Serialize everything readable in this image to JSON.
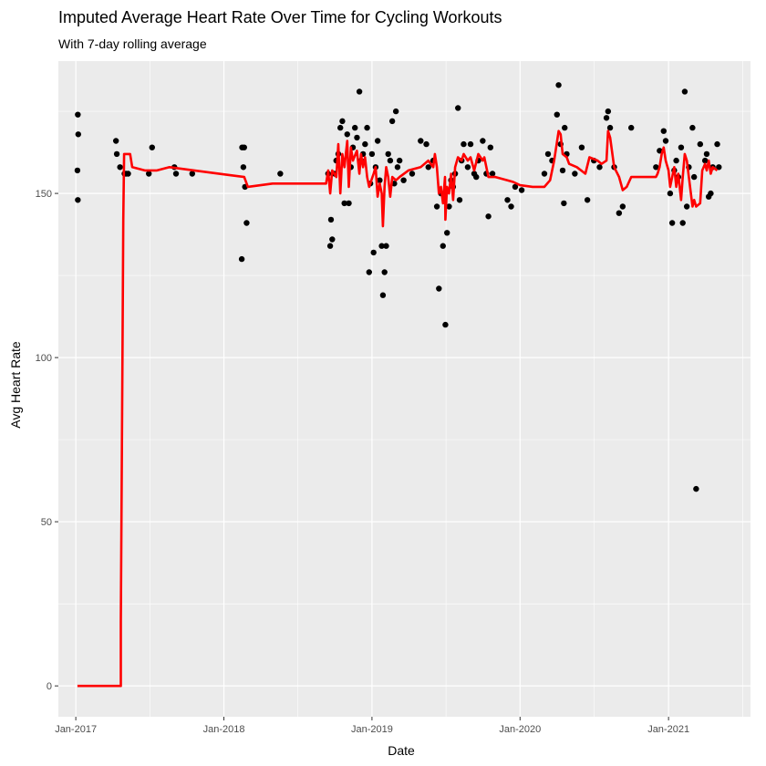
{
  "chart_data": {
    "type": "scatter",
    "title": "Imputed Average Heart Rate Over Time for Cycling Workouts",
    "subtitle": "With 7-day rolling average",
    "xlabel": "Date",
    "ylabel": "Avg Heart Rate",
    "x_ticks": [
      "2017-01-01",
      "2018-01-01",
      "2019-01-01",
      "2020-01-01",
      "2021-01-01"
    ],
    "x_tick_labels": [
      "Jan-2017",
      "Jan-2018",
      "Jan-2019",
      "Jan-2020",
      "Jan-2021"
    ],
    "y_ticks": [
      0,
      50,
      100,
      150
    ],
    "y_tick_labels": [
      "0",
      "50",
      "100",
      "150"
    ],
    "xlim": [
      "2016-11-19",
      "2021-07-22"
    ],
    "ylim": [
      -9.4,
      190.3
    ],
    "grid": true,
    "background": "#ebebeb",
    "grid_color": "#ffffff",
    "point_color": "#000000",
    "line_color": "#ff0000",
    "series": [
      {
        "type": "scatter",
        "points": [
          [
            "2017-01-06",
            174
          ],
          [
            "2017-01-07",
            168
          ],
          [
            "2017-01-05",
            157
          ],
          [
            "2017-01-06",
            148
          ],
          [
            "2017-04-10",
            166
          ],
          [
            "2017-04-12",
            162
          ],
          [
            "2017-04-20",
            158
          ],
          [
            "2017-05-01",
            156
          ],
          [
            "2017-05-05",
            156
          ],
          [
            "2017-05-10",
            156
          ],
          [
            "2017-06-30",
            156
          ],
          [
            "2017-07-08",
            164
          ],
          [
            "2017-09-01",
            158
          ],
          [
            "2017-09-05",
            156
          ],
          [
            "2017-10-15",
            156
          ],
          [
            "2018-02-15",
            164
          ],
          [
            "2018-02-20",
            164
          ],
          [
            "2018-02-18",
            158
          ],
          [
            "2018-02-22",
            152
          ],
          [
            "2018-02-26",
            141
          ],
          [
            "2018-02-14",
            130
          ],
          [
            "2018-05-20",
            156
          ],
          [
            "2018-09-20",
            134
          ],
          [
            "2018-09-25",
            136
          ],
          [
            "2018-09-22",
            142
          ],
          [
            "2018-10-01",
            156
          ],
          [
            "2018-10-05",
            160
          ],
          [
            "2018-10-10",
            162
          ],
          [
            "2018-10-15",
            170
          ],
          [
            "2018-10-20",
            172
          ],
          [
            "2018-11-01",
            168
          ],
          [
            "2018-11-05",
            147
          ],
          [
            "2018-11-10",
            158
          ],
          [
            "2018-11-15",
            164
          ],
          [
            "2018-11-25",
            167
          ],
          [
            "2018-12-01",
            181
          ],
          [
            "2018-12-05",
            160
          ],
          [
            "2018-12-10",
            162
          ],
          [
            "2018-12-15",
            165
          ],
          [
            "2018-12-20",
            170
          ],
          [
            "2018-12-25",
            126
          ],
          [
            "2019-01-05",
            132
          ],
          [
            "2019-01-10",
            158
          ],
          [
            "2019-01-15",
            166
          ],
          [
            "2019-01-20",
            154
          ],
          [
            "2019-01-25",
            134
          ],
          [
            "2019-01-28",
            119
          ],
          [
            "2019-02-01",
            126
          ],
          [
            "2019-02-05",
            134
          ],
          [
            "2019-02-10",
            162
          ],
          [
            "2019-02-15",
            160
          ],
          [
            "2019-02-20",
            172
          ],
          [
            "2019-03-01",
            175
          ],
          [
            "2019-03-10",
            160
          ],
          [
            "2019-03-20",
            154
          ],
          [
            "2019-04-10",
            156
          ],
          [
            "2019-05-01",
            166
          ],
          [
            "2019-05-15",
            165
          ],
          [
            "2019-06-01",
            160
          ],
          [
            "2019-06-10",
            146
          ],
          [
            "2019-06-15",
            121
          ],
          [
            "2019-06-25",
            134
          ],
          [
            "2019-07-01",
            110
          ],
          [
            "2019-07-05",
            138
          ],
          [
            "2019-07-10",
            146
          ],
          [
            "2019-07-20",
            152
          ],
          [
            "2019-07-25",
            156
          ],
          [
            "2019-08-01",
            176
          ],
          [
            "2019-08-05",
            148
          ],
          [
            "2019-08-15",
            165
          ],
          [
            "2019-08-25",
            158
          ],
          [
            "2019-09-01",
            165
          ],
          [
            "2019-09-10",
            156
          ],
          [
            "2019-09-20",
            160
          ],
          [
            "2019-10-01",
            166
          ],
          [
            "2019-10-10",
            156
          ],
          [
            "2019-10-15",
            143
          ],
          [
            "2019-10-20",
            164
          ],
          [
            "2019-10-25",
            156
          ],
          [
            "2019-12-01",
            148
          ],
          [
            "2019-12-10",
            146
          ],
          [
            "2019-12-20",
            152
          ],
          [
            "2020-01-05",
            151
          ],
          [
            "2020-03-01",
            156
          ],
          [
            "2020-03-10",
            162
          ],
          [
            "2020-04-01",
            174
          ],
          [
            "2020-04-05",
            183
          ],
          [
            "2020-04-10",
            165
          ],
          [
            "2020-04-15",
            157
          ],
          [
            "2020-04-18",
            147
          ],
          [
            "2020-04-25",
            162
          ],
          [
            "2020-05-15",
            156
          ],
          [
            "2020-06-01",
            164
          ],
          [
            "2020-06-15",
            148
          ],
          [
            "2020-07-01",
            160
          ],
          [
            "2020-07-15",
            158
          ],
          [
            "2020-08-01",
            173
          ],
          [
            "2020-08-05",
            175
          ],
          [
            "2020-08-10",
            170
          ],
          [
            "2020-08-20",
            158
          ],
          [
            "2020-09-01",
            144
          ],
          [
            "2020-09-10",
            146
          ],
          [
            "2020-10-01",
            170
          ],
          [
            "2020-12-01",
            158
          ],
          [
            "2020-12-10",
            163
          ],
          [
            "2020-12-20",
            169
          ],
          [
            "2020-12-25",
            166
          ],
          [
            "2021-01-05",
            150
          ],
          [
            "2021-01-10",
            141
          ],
          [
            "2021-01-15",
            157
          ],
          [
            "2021-01-20",
            160
          ],
          [
            "2021-01-25",
            155
          ],
          [
            "2021-02-01",
            164
          ],
          [
            "2021-02-05",
            141
          ],
          [
            "2021-02-10",
            181
          ],
          [
            "2021-02-15",
            146
          ],
          [
            "2021-02-20",
            158
          ],
          [
            "2021-03-01",
            170
          ],
          [
            "2021-03-10",
            60
          ],
          [
            "2021-03-20",
            165
          ],
          [
            "2021-04-01",
            160
          ],
          [
            "2021-04-10",
            149
          ],
          [
            "2021-04-15",
            150
          ],
          [
            "2021-04-20",
            158
          ],
          [
            "2021-05-01",
            165
          ],
          [
            "2021-05-05",
            158
          ],
          [
            "2018-09-15",
            156
          ],
          [
            "2018-10-25",
            147
          ],
          [
            "2018-11-20",
            170
          ],
          [
            "2019-01-01",
            162
          ],
          [
            "2019-02-25",
            153
          ],
          [
            "2019-06-20",
            150
          ],
          [
            "2019-08-10",
            160
          ],
          [
            "2019-09-15",
            155
          ],
          [
            "2020-04-20",
            170
          ],
          [
            "2021-03-05",
            155
          ],
          [
            "2021-04-05",
            162
          ],
          [
            "2019-05-20",
            158
          ],
          [
            "2018-12-28",
            153
          ],
          [
            "2019-03-05",
            158
          ],
          [
            "2019-07-15",
            154
          ],
          [
            "2020-03-20",
            160
          ]
        ]
      },
      {
        "type": "line",
        "points": [
          [
            "2017-01-05",
            0
          ],
          [
            "2017-04-22",
            0
          ],
          [
            "2017-04-22",
            20
          ],
          [
            "2017-04-24",
            60
          ],
          [
            "2017-04-26",
            100
          ],
          [
            "2017-04-28",
            142
          ],
          [
            "2017-04-30",
            162
          ],
          [
            "2017-05-15",
            162
          ],
          [
            "2017-05-20",
            158
          ],
          [
            "2017-06-20",
            157
          ],
          [
            "2017-07-20",
            157
          ],
          [
            "2017-08-20",
            158
          ],
          [
            "2017-10-20",
            157
          ],
          [
            "2018-01-20",
            155.5
          ],
          [
            "2018-02-20",
            155
          ],
          [
            "2018-03-01",
            152
          ],
          [
            "2018-05-01",
            153
          ],
          [
            "2018-09-10",
            153
          ],
          [
            "2018-09-15",
            157
          ],
          [
            "2018-09-20",
            150
          ],
          [
            "2018-09-25",
            157
          ],
          [
            "2018-10-05",
            155
          ],
          [
            "2018-10-10",
            165
          ],
          [
            "2018-10-15",
            150
          ],
          [
            "2018-10-20",
            162
          ],
          [
            "2018-10-25",
            158
          ],
          [
            "2018-11-01",
            166
          ],
          [
            "2018-11-05",
            152
          ],
          [
            "2018-11-10",
            164
          ],
          [
            "2018-11-15",
            160
          ],
          [
            "2018-11-25",
            163
          ],
          [
            "2018-12-01",
            156
          ],
          [
            "2018-12-05",
            162
          ],
          [
            "2018-12-10",
            158
          ],
          [
            "2018-12-15",
            161
          ],
          [
            "2018-12-20",
            155
          ],
          [
            "2018-12-25",
            152
          ],
          [
            "2019-01-05",
            156
          ],
          [
            "2019-01-10",
            158
          ],
          [
            "2019-01-15",
            149
          ],
          [
            "2019-01-20",
            153
          ],
          [
            "2019-01-25",
            150
          ],
          [
            "2019-01-28",
            140
          ],
          [
            "2019-02-01",
            152
          ],
          [
            "2019-02-05",
            158
          ],
          [
            "2019-02-10",
            155
          ],
          [
            "2019-02-15",
            149
          ],
          [
            "2019-02-20",
            155
          ],
          [
            "2019-03-01",
            154
          ],
          [
            "2019-03-10",
            155
          ],
          [
            "2019-04-01",
            157
          ],
          [
            "2019-05-01",
            158
          ],
          [
            "2019-05-20",
            160
          ],
          [
            "2019-06-01",
            158
          ],
          [
            "2019-06-05",
            162
          ],
          [
            "2019-06-10",
            158
          ],
          [
            "2019-06-15",
            150
          ],
          [
            "2019-06-20",
            152
          ],
          [
            "2019-06-25",
            147
          ],
          [
            "2019-06-30",
            155
          ],
          [
            "2019-07-01",
            142
          ],
          [
            "2019-07-05",
            152
          ],
          [
            "2019-07-10",
            150
          ],
          [
            "2019-07-15",
            156
          ],
          [
            "2019-07-20",
            148
          ],
          [
            "2019-07-25",
            158
          ],
          [
            "2019-08-01",
            161
          ],
          [
            "2019-08-10",
            160
          ],
          [
            "2019-08-15",
            162
          ],
          [
            "2019-08-25",
            160
          ],
          [
            "2019-09-01",
            161
          ],
          [
            "2019-09-10",
            157
          ],
          [
            "2019-09-20",
            162
          ],
          [
            "2019-10-01",
            160
          ],
          [
            "2019-10-05",
            161
          ],
          [
            "2019-10-15",
            155
          ],
          [
            "2019-11-01",
            155
          ],
          [
            "2019-12-01",
            154
          ],
          [
            "2019-12-15",
            153.5
          ],
          [
            "2020-01-01",
            152.5
          ],
          [
            "2020-02-01",
            152
          ],
          [
            "2020-03-01",
            152
          ],
          [
            "2020-03-15",
            154
          ],
          [
            "2020-03-25",
            160
          ],
          [
            "2020-04-05",
            169
          ],
          [
            "2020-04-10",
            168
          ],
          [
            "2020-04-15",
            162
          ],
          [
            "2020-04-25",
            161
          ],
          [
            "2020-05-01",
            159
          ],
          [
            "2020-05-20",
            158
          ],
          [
            "2020-06-10",
            156
          ],
          [
            "2020-06-20",
            161
          ],
          [
            "2020-07-10",
            160
          ],
          [
            "2020-07-20",
            159
          ],
          [
            "2020-08-01",
            160
          ],
          [
            "2020-08-05",
            169
          ],
          [
            "2020-08-10",
            167
          ],
          [
            "2020-08-20",
            158
          ],
          [
            "2020-09-01",
            155
          ],
          [
            "2020-09-10",
            151
          ],
          [
            "2020-09-20",
            152
          ],
          [
            "2020-10-01",
            155
          ],
          [
            "2020-12-01",
            155
          ],
          [
            "2020-12-05",
            156
          ],
          [
            "2020-12-10",
            158
          ],
          [
            "2020-12-15",
            162
          ],
          [
            "2020-12-20",
            164
          ],
          [
            "2020-12-25",
            160
          ],
          [
            "2021-01-01",
            157
          ],
          [
            "2021-01-05",
            152
          ],
          [
            "2021-01-10",
            155
          ],
          [
            "2021-01-15",
            158
          ],
          [
            "2021-01-20",
            152
          ],
          [
            "2021-01-25",
            156
          ],
          [
            "2021-02-01",
            148
          ],
          [
            "2021-02-05",
            155
          ],
          [
            "2021-02-10",
            162
          ],
          [
            "2021-02-15",
            160
          ],
          [
            "2021-02-20",
            155
          ],
          [
            "2021-03-01",
            146
          ],
          [
            "2021-03-05",
            148
          ],
          [
            "2021-03-10",
            146
          ],
          [
            "2021-03-20",
            147
          ],
          [
            "2021-03-25",
            157
          ],
          [
            "2021-04-01",
            159
          ],
          [
            "2021-04-05",
            157
          ],
          [
            "2021-04-10",
            160
          ],
          [
            "2021-04-15",
            156
          ],
          [
            "2021-04-20",
            158
          ],
          [
            "2021-05-01",
            157
          ]
        ]
      }
    ]
  }
}
